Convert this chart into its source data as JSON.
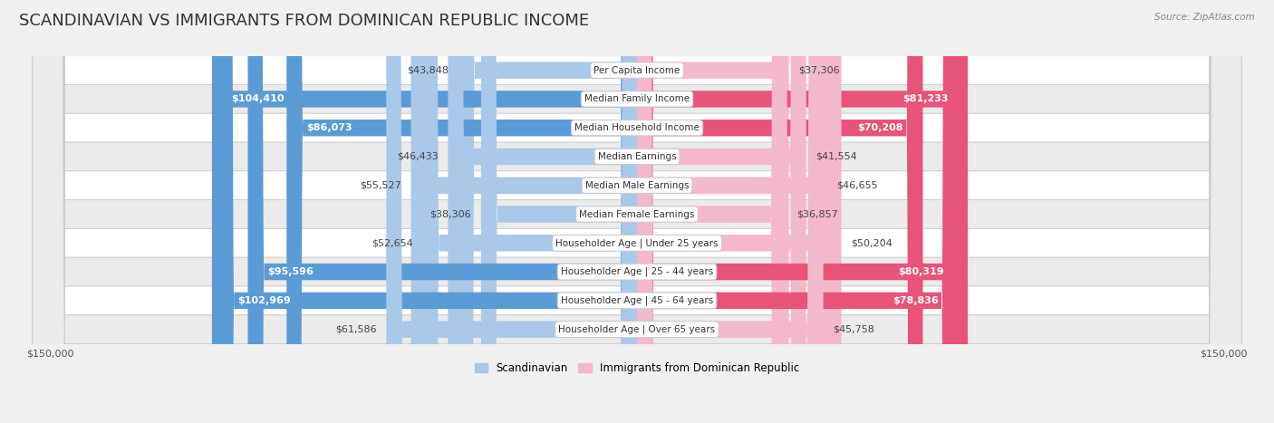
{
  "title": "SCANDINAVIAN VS IMMIGRANTS FROM DOMINICAN REPUBLIC INCOME",
  "source": "Source: ZipAtlas.com",
  "categories": [
    "Per Capita Income",
    "Median Family Income",
    "Median Household Income",
    "Median Earnings",
    "Median Male Earnings",
    "Median Female Earnings",
    "Householder Age | Under 25 years",
    "Householder Age | 25 - 44 years",
    "Householder Age | 45 - 64 years",
    "Householder Age | Over 65 years"
  ],
  "scandinavian_values": [
    43848,
    104410,
    86073,
    46433,
    55527,
    38306,
    52654,
    95596,
    102969,
    61586
  ],
  "dominican_values": [
    37306,
    81233,
    70208,
    41554,
    46655,
    36857,
    50204,
    80319,
    78836,
    45758
  ],
  "scandinavian_labels": [
    "$43,848",
    "$104,410",
    "$86,073",
    "$46,433",
    "$55,527",
    "$38,306",
    "$52,654",
    "$95,596",
    "$102,969",
    "$61,586"
  ],
  "dominican_labels": [
    "$37,306",
    "$81,233",
    "$70,208",
    "$41,554",
    "$46,655",
    "$36,857",
    "$50,204",
    "$80,319",
    "$78,836",
    "$45,758"
  ],
  "scand_color_light": "#aac8e8",
  "scand_color_dark": "#5b9bd5",
  "dom_color_light": "#f4b8cc",
  "dom_color_dark": "#e8537a",
  "max_value": 150000,
  "background_color": "#f0f0f0",
  "row_bg_even": "#ffffff",
  "row_bg_odd": "#ebebeb",
  "title_fontsize": 13,
  "label_fontsize": 8,
  "legend_labels": [
    "Scandinavian",
    "Immigrants from Dominican Republic"
  ],
  "x_tick_labels": [
    "$150,000",
    "$150,000"
  ],
  "inside_threshold": 65000,
  "scand_inside_threshold": 65000,
  "dom_inside_threshold": 60000
}
